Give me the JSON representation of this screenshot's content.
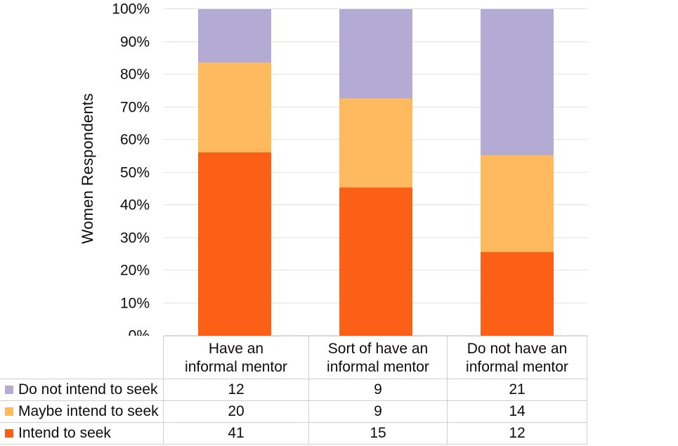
{
  "chart_data": {
    "type": "bar",
    "stacked": "percent",
    "title": "",
    "xlabel": "",
    "ylabel": "Women Respondents",
    "categories": [
      "Have an\ninformal mentor",
      "Sort of have an\ninformal mentor",
      "Do not have an\ninformal mentor"
    ],
    "series": [
      {
        "name": "Do not intend to seek",
        "color": "#b4abd5",
        "values": [
          12,
          9,
          21
        ]
      },
      {
        "name": "Maybe intend to seek",
        "color": "#ffb95e",
        "values": [
          20,
          9,
          14
        ]
      },
      {
        "name": "Intend to seek",
        "color": "#fc6017",
        "values": [
          41,
          15,
          12
        ]
      }
    ],
    "yticks": [
      "0%",
      "10%",
      "20%",
      "30%",
      "40%",
      "50%",
      "60%",
      "70%",
      "80%",
      "90%",
      "100%"
    ],
    "ylim": [
      "0%",
      "100%"
    ],
    "grid": "horizontal",
    "legend_position": "table-left-column"
  },
  "colors": {
    "gridline": "#e2e2e2",
    "table_border": "#cfcfcf",
    "text": "#0d0d0d",
    "background": "#ffffff"
  }
}
